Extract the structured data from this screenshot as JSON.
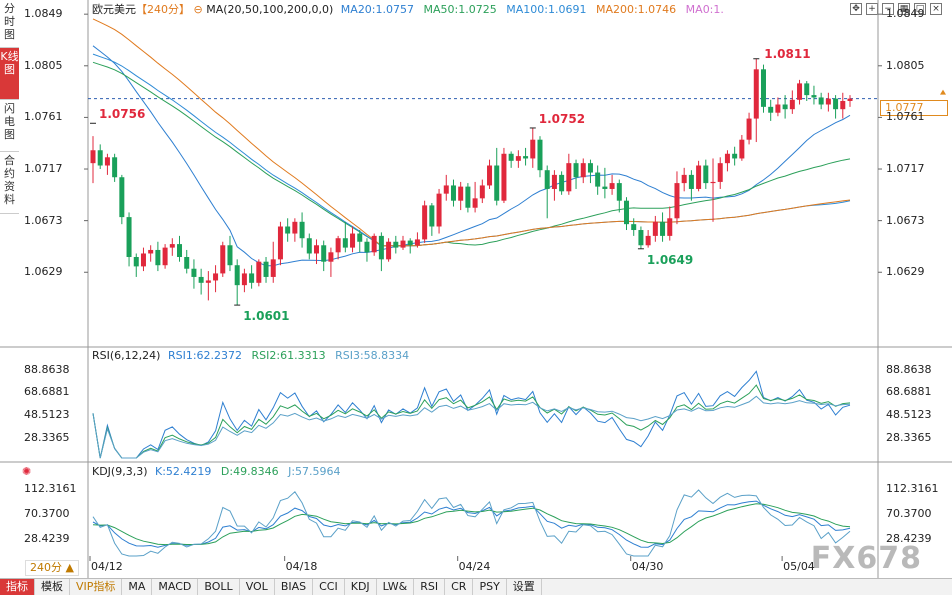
{
  "left_tabs": [
    "分时图",
    "K线图",
    "闪电图",
    "合约资料"
  ],
  "main_header": {
    "symbol": "欧元美元",
    "period": "【240分】",
    "indicator": "MA(20,50,100,200,0,0)",
    "ma20": "MA20:1.0757",
    "ma50": "MA50:1.0725",
    "ma100": "MA100:1.0691",
    "ma200": "MA200:1.0746",
    "ma0": "MA0:1."
  },
  "rsi_header": {
    "name": "RSI(6,12,24)",
    "rsi1": "RSI1:62.2372",
    "rsi2": "RSI2:61.3313",
    "rsi3": "RSI3:58.8334"
  },
  "kdj_header": {
    "name": "KDJ(9,3,3)",
    "k": "K:52.4219",
    "d": "D:49.8346",
    "j": "J:57.5964"
  },
  "price_axis_labels": [
    "1.0849",
    "1.0805",
    "1.0761",
    "1.0717",
    "1.0673",
    "1.0629"
  ],
  "current_price": "1.0777",
  "rsi_axis_labels": [
    "88.8638",
    "68.6881",
    "48.5123",
    "28.3365"
  ],
  "kdj_axis_labels": [
    "112.3161",
    "70.3700",
    "28.4239"
  ],
  "x_axis_labels": [
    "04/12",
    "04/18",
    "04/24",
    "04/30",
    "05/04"
  ],
  "annotations": [
    {
      "text": "1.0756"
    },
    {
      "text": "1.0601"
    },
    {
      "text": "1.0752"
    },
    {
      "text": "1.0649"
    },
    {
      "text": "1.0811"
    }
  ],
  "period_selector": "240分 ▲",
  "watermark": "FX678",
  "bottom_tabs": [
    "指标",
    "模板",
    "VIP指标",
    "MA",
    "MACD",
    "BOLL",
    "VOL",
    "BIAS",
    "CCI",
    "KDJ",
    "LW&",
    "RSI",
    "CR",
    "PSY",
    "设置"
  ],
  "colors": {
    "up": "#e0283c",
    "down": "#1aa05a",
    "ma20": "#2e7fd1",
    "ma50": "#2ca05a",
    "ma100": "#2e8bd6",
    "ma200": "#e07a1e",
    "rsi1": "#2e7fd1",
    "rsi2": "#2ca05a",
    "rsi3": "#5aa0c8"
  },
  "chart_data": {
    "type": "candlestick",
    "title": "欧元美元 240分",
    "ylim": [
      1.059,
      1.085
    ],
    "x_ticks": [
      "04/12",
      "04/18",
      "04/24",
      "04/30",
      "05/04"
    ],
    "candles": [
      [
        1.0722,
        1.0733,
        1.0705,
        1.0745
      ],
      [
        1.0733,
        1.072,
        1.0717,
        1.0738
      ],
      [
        1.072,
        1.0727,
        1.0712,
        1.073
      ],
      [
        1.0727,
        1.071,
        1.0706,
        1.073
      ],
      [
        1.071,
        1.0676,
        1.067,
        1.0712
      ],
      [
        1.0676,
        1.0642,
        1.0634,
        1.068
      ],
      [
        1.0642,
        1.0634,
        1.0625,
        1.0645
      ],
      [
        1.0634,
        1.0645,
        1.063,
        1.065
      ],
      [
        1.0645,
        1.0648,
        1.0638,
        1.0652
      ],
      [
        1.0648,
        1.0635,
        1.063,
        1.0655
      ],
      [
        1.0635,
        1.065,
        1.0632,
        1.0653
      ],
      [
        1.065,
        1.0653,
        1.0643,
        1.0658
      ],
      [
        1.0653,
        1.0642,
        1.0638,
        1.066
      ],
      [
        1.0642,
        1.0632,
        1.0628,
        1.0648
      ],
      [
        1.0632,
        1.0625,
        1.0615,
        1.064
      ],
      [
        1.0625,
        1.062,
        1.061,
        1.0632
      ],
      [
        1.062,
        1.0622,
        1.0605,
        1.063
      ],
      [
        1.0622,
        1.0628,
        1.0612,
        1.0635
      ],
      [
        1.0628,
        1.0652,
        1.0625,
        1.0655
      ],
      [
        1.0652,
        1.0635,
        1.063,
        1.066
      ],
      [
        1.0635,
        1.0618,
        1.0601,
        1.064
      ],
      [
        1.0618,
        1.0628,
        1.0612,
        1.0632
      ],
      [
        1.0628,
        1.062,
        1.0615,
        1.0635
      ],
      [
        1.062,
        1.0638,
        1.0617,
        1.064
      ],
      [
        1.0638,
        1.0625,
        1.062,
        1.0642
      ],
      [
        1.0625,
        1.064,
        1.062,
        1.0655
      ],
      [
        1.064,
        1.0668,
        1.0635,
        1.0672
      ],
      [
        1.0668,
        1.0662,
        1.0655,
        1.0675
      ],
      [
        1.0662,
        1.0672,
        1.0655,
        1.0675
      ],
      [
        1.0672,
        1.0658,
        1.065,
        1.068
      ],
      [
        1.0658,
        1.0645,
        1.064,
        1.0662
      ],
      [
        1.0645,
        1.0652,
        1.0636,
        1.0657
      ],
      [
        1.0652,
        1.0638,
        1.063,
        1.0656
      ],
      [
        1.0638,
        1.0646,
        1.0625,
        1.065
      ],
      [
        1.0646,
        1.0658,
        1.064,
        1.066
      ],
      [
        1.0658,
        1.065,
        1.0646,
        1.0672
      ],
      [
        1.065,
        1.0662,
        1.0646,
        1.0668
      ],
      [
        1.0662,
        1.0655,
        1.0646,
        1.0665
      ],
      [
        1.0655,
        1.0646,
        1.0638,
        1.0658
      ],
      [
        1.0646,
        1.066,
        1.0643,
        1.0662
      ],
      [
        1.066,
        1.064,
        1.063,
        1.0663
      ],
      [
        1.064,
        1.0655,
        1.0638,
        1.0658
      ],
      [
        1.0655,
        1.065,
        1.0645,
        1.066
      ],
      [
        1.065,
        1.0656,
        1.0648,
        1.066
      ],
      [
        1.0656,
        1.0652,
        1.0645,
        1.0658
      ],
      [
        1.0652,
        1.0657,
        1.065,
        1.0663
      ],
      [
        1.0657,
        1.0686,
        1.0654,
        1.069
      ],
      [
        1.0686,
        1.0668,
        1.066,
        1.0688
      ],
      [
        1.0668,
        1.0696,
        1.0662,
        1.07
      ],
      [
        1.0696,
        1.0703,
        1.069,
        1.0712
      ],
      [
        1.0703,
        1.069,
        1.0685,
        1.0708
      ],
      [
        1.069,
        1.0702,
        1.0682,
        1.0706
      ],
      [
        1.0702,
        1.0684,
        1.068,
        1.0705
      ],
      [
        1.0684,
        1.0692,
        1.068,
        1.0706
      ],
      [
        1.0692,
        1.0703,
        1.0688,
        1.0708
      ],
      [
        1.0703,
        1.072,
        1.07,
        1.0725
      ],
      [
        1.072,
        1.069,
        1.0686,
        1.0735
      ],
      [
        1.069,
        1.073,
        1.0688,
        1.0735
      ],
      [
        1.073,
        1.0724,
        1.0718,
        1.0732
      ],
      [
        1.0724,
        1.0728,
        1.0718,
        1.0733
      ],
      [
        1.0728,
        1.0726,
        1.072,
        1.0735
      ],
      [
        1.0726,
        1.0742,
        1.0718,
        1.0752
      ],
      [
        1.0742,
        1.0716,
        1.071,
        1.0745
      ],
      [
        1.0716,
        1.07,
        1.0675,
        1.072
      ],
      [
        1.07,
        1.0712,
        1.069,
        1.0716
      ],
      [
        1.0712,
        1.0698,
        1.0695,
        1.0715
      ],
      [
        1.0698,
        1.0722,
        1.0695,
        1.073
      ],
      [
        1.0722,
        1.071,
        1.07,
        1.0725
      ],
      [
        1.071,
        1.0722,
        1.0705,
        1.0726
      ],
      [
        1.0722,
        1.0714,
        1.0705,
        1.0725
      ],
      [
        1.0714,
        1.0702,
        1.0695,
        1.072
      ],
      [
        1.0702,
        1.07,
        1.0692,
        1.0718
      ],
      [
        1.07,
        1.0705,
        1.0695,
        1.0712
      ],
      [
        1.0705,
        1.069,
        1.068,
        1.0708
      ],
      [
        1.069,
        1.067,
        1.0665,
        1.0693
      ],
      [
        1.067,
        1.0665,
        1.066,
        1.0675
      ],
      [
        1.0665,
        1.0652,
        1.0649,
        1.0668
      ],
      [
        1.0652,
        1.066,
        1.065,
        1.0665
      ],
      [
        1.066,
        1.0672,
        1.0655,
        1.0677
      ],
      [
        1.0672,
        1.066,
        1.0655,
        1.068
      ],
      [
        1.066,
        1.0675,
        1.0656,
        1.0685
      ],
      [
        1.0675,
        1.0705,
        1.067,
        1.0715
      ],
      [
        1.0705,
        1.0712,
        1.0698,
        1.0718
      ],
      [
        1.0712,
        1.07,
        1.069,
        1.0716
      ],
      [
        1.07,
        1.072,
        1.0698,
        1.0724
      ],
      [
        1.072,
        1.0705,
        1.07,
        1.0725
      ],
      [
        1.0705,
        1.0706,
        1.0672,
        1.0726
      ],
      [
        1.0706,
        1.0722,
        1.07,
        1.0727
      ],
      [
        1.0722,
        1.073,
        1.0715,
        1.0733
      ],
      [
        1.073,
        1.0726,
        1.072,
        1.0736
      ],
      [
        1.0726,
        1.0742,
        1.0724,
        1.0746
      ],
      [
        1.0742,
        1.076,
        1.0738,
        1.0765
      ],
      [
        1.076,
        1.0802,
        1.074,
        1.0811
      ],
      [
        1.0802,
        1.077,
        1.0765,
        1.0806
      ],
      [
        1.077,
        1.0765,
        1.0758,
        1.0776
      ],
      [
        1.0765,
        1.0772,
        1.0762,
        1.0778
      ],
      [
        1.0772,
        1.0768,
        1.076,
        1.078
      ],
      [
        1.0768,
        1.0776,
        1.0764,
        1.0784
      ],
      [
        1.0776,
        1.079,
        1.0772,
        1.0793
      ],
      [
        1.079,
        1.078,
        1.0775,
        1.0792
      ],
      [
        1.078,
        1.0778,
        1.0772,
        1.0788
      ],
      [
        1.0778,
        1.0772,
        1.0768,
        1.0782
      ],
      [
        1.0772,
        1.0777,
        1.0766,
        1.0782
      ],
      [
        1.0777,
        1.0768,
        1.076,
        1.078
      ],
      [
        1.0768,
        1.0775,
        1.076,
        1.0782
      ],
      [
        1.0775,
        1.0777,
        1.077,
        1.078
      ]
    ]
  }
}
